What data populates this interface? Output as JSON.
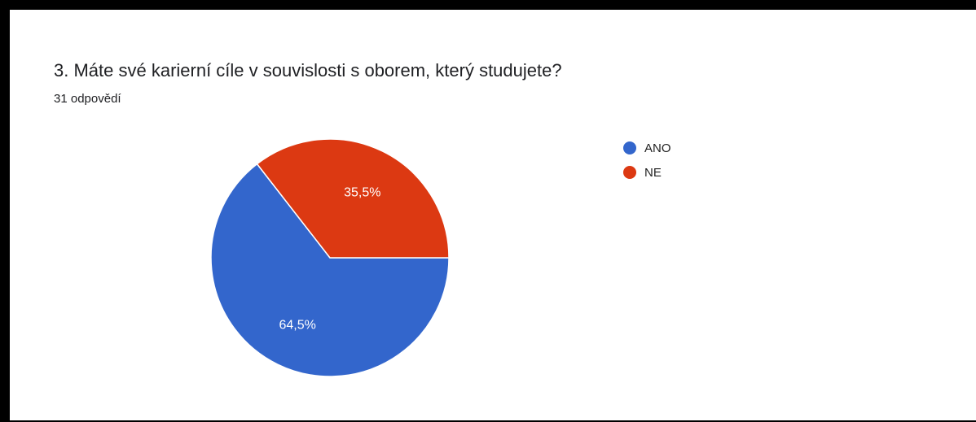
{
  "question": {
    "title": "3. Máte své karierní cíle v souvislosti s oborem, který studujete?",
    "response_count": "31 odpovědí"
  },
  "colors": {
    "ANO": "#3366cc",
    "NE": "#dc3912"
  },
  "chart_data": {
    "type": "pie",
    "title": "3. Máte své karierní cíle v souvislosti s oborem, který studujete?",
    "slices": [
      {
        "label": "ANO",
        "value": 64.5,
        "display": "64,5%",
        "color": "#3366cc"
      },
      {
        "label": "NE",
        "value": 35.5,
        "display": "35,5%",
        "color": "#dc3912"
      }
    ],
    "legend_position": "right"
  }
}
